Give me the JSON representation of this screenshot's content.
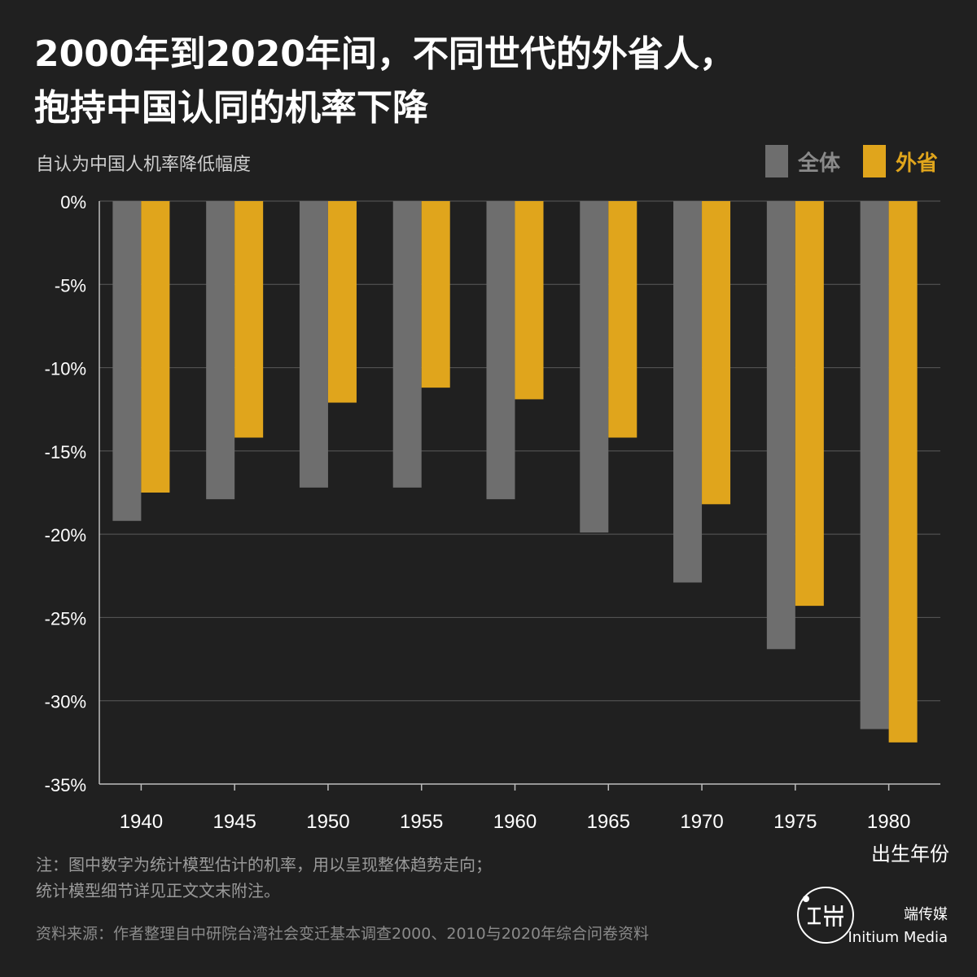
{
  "title_line1": "2000年到2020年间，不同世代的外省人，",
  "title_line2": "抱持中国认同的机率下降",
  "subtitle": "自认为中国人机率降低幅度",
  "legend": [
    {
      "label": "全体",
      "color": "#6e6e6e"
    },
    {
      "label": "外省",
      "color": "#e0a51c"
    }
  ],
  "note_line1": "注：图中数字为统计模型估计的机率，用以呈现整体趋势走向；",
  "note_line2": "统计模型细节详见正文文末附注。",
  "source": "资料来源：作者整理自中研院台湾社会变迁基本调查2000、2010与2020年综合问卷资料",
  "brand_cn": "端传媒",
  "brand_en": "Initium Media",
  "chart_data": {
    "type": "bar",
    "categories": [
      "1940",
      "1945",
      "1950",
      "1955",
      "1960",
      "1965",
      "1970",
      "1975",
      "1980"
    ],
    "series": [
      {
        "name": "全体",
        "color": "#6e6e6e",
        "values": [
          -19.2,
          -17.9,
          -17.2,
          -17.2,
          -17.9,
          -19.9,
          -22.9,
          -26.9,
          -31.7
        ]
      },
      {
        "name": "外省",
        "color": "#e0a51c",
        "values": [
          -17.5,
          -14.2,
          -12.1,
          -11.2,
          -11.9,
          -14.2,
          -18.2,
          -24.3,
          -32.5
        ]
      }
    ],
    "xlabel": "出生年份",
    "ylabel": "",
    "ylim": [
      -35,
      0
    ],
    "yticks": [
      0,
      -5,
      -10,
      -15,
      -20,
      -25,
      -30,
      -35
    ],
    "ytick_labels": [
      "0%",
      "-5%",
      "-10%",
      "-15%",
      "-20%",
      "-25%",
      "-30%",
      "-35%"
    ],
    "grid": true,
    "legend_position": "top-right"
  }
}
